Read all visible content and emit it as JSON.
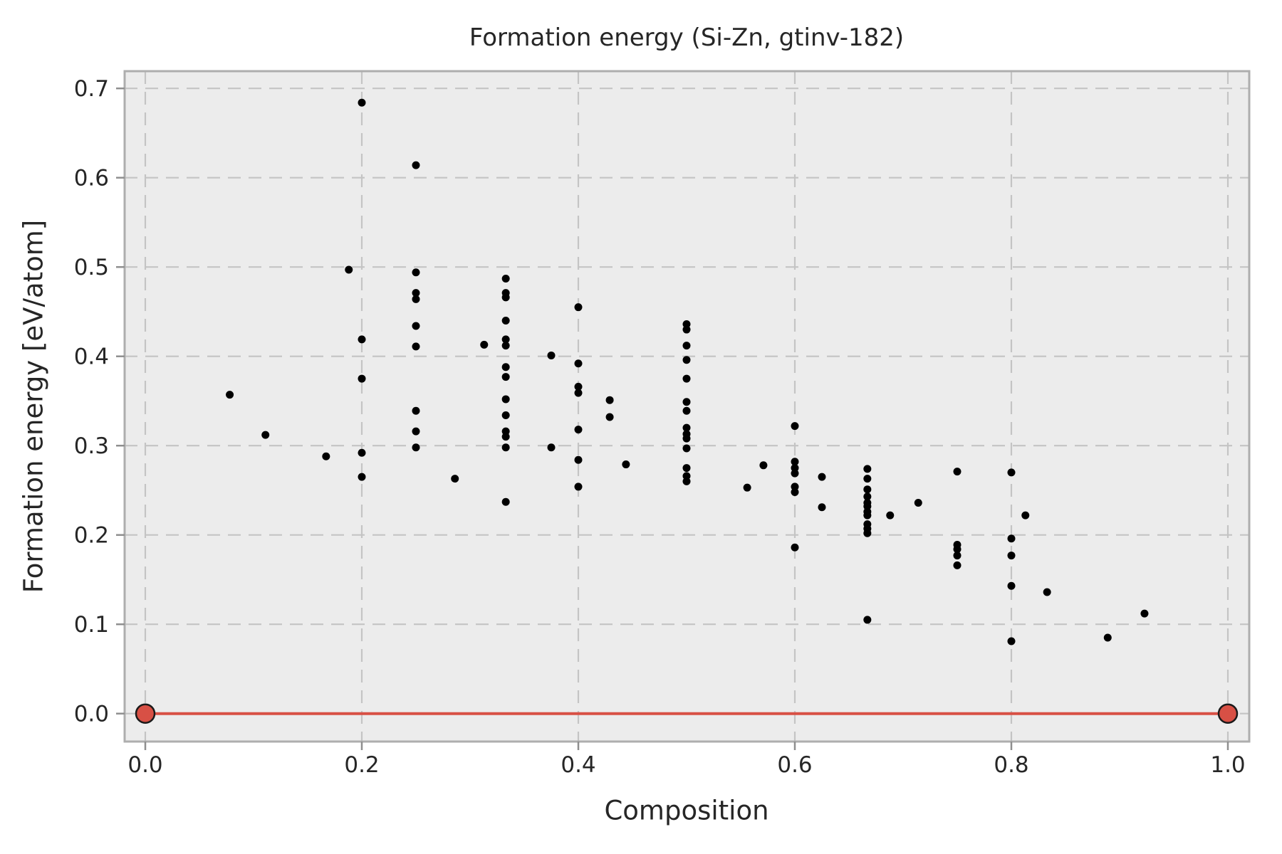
{
  "chart_data": {
    "type": "scatter",
    "title": "Formation energy (Si-Zn, gtinv-182)",
    "xlabel": "Composition",
    "ylabel": "Formation energy [eV/atom]",
    "x_ticks": [
      0.0,
      0.2,
      0.4,
      0.6,
      0.8,
      1.0
    ],
    "x_tick_labels": [
      "0.0",
      "0.2",
      "0.4",
      "0.6",
      "0.8",
      "1.0"
    ],
    "y_ticks": [
      0.0,
      0.1,
      0.2,
      0.3,
      0.4,
      0.5,
      0.6,
      0.7
    ],
    "y_tick_labels": [
      "0.0",
      "0.1",
      "0.2",
      "0.3",
      "0.4",
      "0.5",
      "0.6",
      "0.7"
    ],
    "xlim": [
      -0.019,
      1.02
    ],
    "ylim": [
      -0.031,
      0.719
    ],
    "grid": "dashed",
    "legend_position": "none",
    "series": [
      {
        "name": "formation-energies",
        "marker": "dot",
        "color": "#000000",
        "points": [
          [
            0.078,
            0.357
          ],
          [
            0.111,
            0.312
          ],
          [
            0.167,
            0.288
          ],
          [
            0.188,
            0.497
          ],
          [
            0.2,
            0.684
          ],
          [
            0.2,
            0.419
          ],
          [
            0.2,
            0.375
          ],
          [
            0.2,
            0.292
          ],
          [
            0.2,
            0.265
          ],
          [
            0.25,
            0.614
          ],
          [
            0.25,
            0.494
          ],
          [
            0.25,
            0.471
          ],
          [
            0.25,
            0.464
          ],
          [
            0.25,
            0.434
          ],
          [
            0.25,
            0.411
          ],
          [
            0.25,
            0.339
          ],
          [
            0.25,
            0.316
          ],
          [
            0.25,
            0.298
          ],
          [
            0.286,
            0.263
          ],
          [
            0.313,
            0.413
          ],
          [
            0.333,
            0.487
          ],
          [
            0.333,
            0.471
          ],
          [
            0.333,
            0.466
          ],
          [
            0.333,
            0.44
          ],
          [
            0.333,
            0.419
          ],
          [
            0.333,
            0.412
          ],
          [
            0.333,
            0.388
          ],
          [
            0.333,
            0.377
          ],
          [
            0.333,
            0.352
          ],
          [
            0.333,
            0.334
          ],
          [
            0.333,
            0.316
          ],
          [
            0.333,
            0.31
          ],
          [
            0.333,
            0.298
          ],
          [
            0.333,
            0.237
          ],
          [
            0.375,
            0.401
          ],
          [
            0.375,
            0.298
          ],
          [
            0.4,
            0.455
          ],
          [
            0.4,
            0.392
          ],
          [
            0.4,
            0.366
          ],
          [
            0.4,
            0.359
          ],
          [
            0.4,
            0.318
          ],
          [
            0.4,
            0.284
          ],
          [
            0.4,
            0.254
          ],
          [
            0.429,
            0.351
          ],
          [
            0.429,
            0.332
          ],
          [
            0.444,
            0.279
          ],
          [
            0.5,
            0.436
          ],
          [
            0.5,
            0.43
          ],
          [
            0.5,
            0.412
          ],
          [
            0.5,
            0.396
          ],
          [
            0.5,
            0.375
          ],
          [
            0.5,
            0.349
          ],
          [
            0.5,
            0.339
          ],
          [
            0.5,
            0.32
          ],
          [
            0.5,
            0.313
          ],
          [
            0.5,
            0.308
          ],
          [
            0.5,
            0.297
          ],
          [
            0.5,
            0.275
          ],
          [
            0.5,
            0.266
          ],
          [
            0.5,
            0.26
          ],
          [
            0.556,
            0.253
          ],
          [
            0.571,
            0.278
          ],
          [
            0.6,
            0.322
          ],
          [
            0.6,
            0.282
          ],
          [
            0.6,
            0.275
          ],
          [
            0.6,
            0.269
          ],
          [
            0.6,
            0.254
          ],
          [
            0.6,
            0.248
          ],
          [
            0.6,
            0.186
          ],
          [
            0.625,
            0.265
          ],
          [
            0.625,
            0.231
          ],
          [
            0.667,
            0.274
          ],
          [
            0.667,
            0.263
          ],
          [
            0.667,
            0.251
          ],
          [
            0.667,
            0.243
          ],
          [
            0.667,
            0.236
          ],
          [
            0.667,
            0.232
          ],
          [
            0.667,
            0.226
          ],
          [
            0.667,
            0.222
          ],
          [
            0.667,
            0.212
          ],
          [
            0.667,
            0.207
          ],
          [
            0.667,
            0.202
          ],
          [
            0.667,
            0.105
          ],
          [
            0.688,
            0.222
          ],
          [
            0.714,
            0.236
          ],
          [
            0.75,
            0.271
          ],
          [
            0.75,
            0.189
          ],
          [
            0.75,
            0.184
          ],
          [
            0.75,
            0.177
          ],
          [
            0.75,
            0.166
          ],
          [
            0.8,
            0.27
          ],
          [
            0.8,
            0.196
          ],
          [
            0.8,
            0.177
          ],
          [
            0.8,
            0.143
          ],
          [
            0.8,
            0.081
          ],
          [
            0.813,
            0.222
          ],
          [
            0.833,
            0.136
          ],
          [
            0.889,
            0.085
          ],
          [
            0.923,
            0.112
          ]
        ]
      },
      {
        "name": "convex-hull",
        "marker": "circle-outlined",
        "color": "#d85045",
        "line": true,
        "points": [
          [
            0.0,
            0.0
          ],
          [
            1.0,
            0.0
          ]
        ]
      }
    ]
  },
  "colors": {
    "figure_background": "#ffffff",
    "axes_background": "#ececec",
    "grid": "#c4c4c4",
    "spine": "#aeaeae",
    "tick": "#8f8f8f",
    "text": "#262626",
    "scatter": "#000000",
    "hull_line": "#d85045",
    "hull_marker_fill": "#d85045",
    "hull_marker_edge": "#1a1a1a"
  }
}
